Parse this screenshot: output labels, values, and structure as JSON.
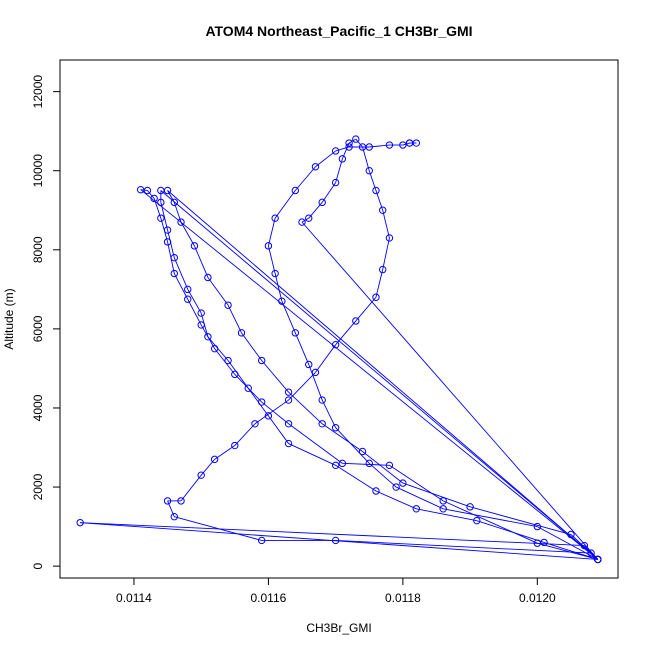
{
  "chart_data": {
    "type": "line",
    "title": "ATOM4 Northeast_Pacific_1 CH3Br_GMI",
    "xlabel": "CH3Br_GMI",
    "ylabel": "Altitude (m)",
    "xlim": [
      0.01129,
      0.01212
    ],
    "ylim": [
      -300,
      12800
    ],
    "xticks": [
      0.0114,
      0.0116,
      0.0118,
      0.012
    ],
    "xtick_labels": [
      "0.0114",
      "0.0116",
      "0.0118",
      "0.0120"
    ],
    "yticks": [
      0,
      2000,
      4000,
      6000,
      8000,
      10000,
      12000
    ],
    "ytick_labels": [
      "0",
      "2000",
      "4000",
      "6000",
      "8000",
      "10000",
      "12000"
    ],
    "grid": false,
    "series": [
      {
        "color": "#0000ff",
        "marker": "open-circle",
        "x": [
          0.01209,
          0.01208,
          0.0117,
          0.01159,
          0.01146,
          0.01145,
          0.01147,
          0.0115,
          0.01152,
          0.01155,
          0.01158,
          0.01163,
          0.01167,
          0.0117,
          0.01173,
          0.01176,
          0.01177,
          0.01178,
          0.01177,
          0.01176,
          0.01175,
          0.01174,
          0.01173,
          0.01172,
          0.01171,
          0.0117,
          0.01168,
          0.01166,
          0.01165,
          0.01209,
          0.01207,
          0.01132,
          0.01209,
          0.01201,
          0.01191,
          0.01182,
          0.01176,
          0.0117,
          0.01163,
          0.0116,
          0.01157,
          0.01154,
          0.01151,
          0.0115,
          0.01148,
          0.01146,
          0.01145,
          0.01144,
          0.01144,
          0.01209,
          0.012,
          0.01186,
          0.01178,
          0.01171,
          0.01163,
          0.01159,
          0.01155,
          0.01152,
          0.0115,
          0.01148,
          0.01146,
          0.01145,
          0.01144,
          0.01143,
          0.01142,
          0.01141,
          0.01209,
          0.01205,
          0.0119,
          0.0118,
          0.01174,
          0.01168,
          0.01163,
          0.01159,
          0.01156,
          0.01154,
          0.01151,
          0.01149,
          0.01147,
          0.01146,
          0.01145,
          0.01209,
          0.012,
          0.01186,
          0.01179,
          0.01175,
          0.0117,
          0.01168,
          0.01166,
          0.01164,
          0.01162,
          0.01161,
          0.0116,
          0.01161,
          0.01164,
          0.01167,
          0.0117,
          0.01172,
          0.01175,
          0.01178,
          0.0118,
          0.01181,
          0.01182,
          0.01181
        ],
        "y": [
          170,
          330,
          650,
          650,
          1250,
          1650,
          1650,
          2300,
          2700,
          3050,
          3600,
          4200,
          4900,
          5600,
          6200,
          6800,
          7500,
          8300,
          9000,
          9500,
          10000,
          10600,
          10800,
          10700,
          10300,
          9700,
          9200,
          8800,
          8700,
          170,
          520,
          1100,
          170,
          600,
          1150,
          1450,
          1900,
          2550,
          3100,
          3800,
          4500,
          5200,
          5800,
          6400,
          7000,
          7800,
          8500,
          9200,
          9500,
          170,
          580,
          1650,
          2550,
          2600,
          3600,
          4150,
          4850,
          5500,
          6100,
          6750,
          7400,
          8200,
          8800,
          9300,
          9500,
          9520,
          170,
          800,
          1500,
          2100,
          2900,
          3600,
          4400,
          5200,
          5900,
          6600,
          7300,
          8100,
          8700,
          9200,
          9500,
          170,
          1000,
          1450,
          2000,
          2600,
          3500,
          4200,
          5100,
          5900,
          6700,
          7400,
          8100,
          8800,
          9500,
          10100,
          10500,
          10600,
          10600,
          10650,
          10650,
          10700,
          10700,
          10700
        ]
      }
    ]
  }
}
